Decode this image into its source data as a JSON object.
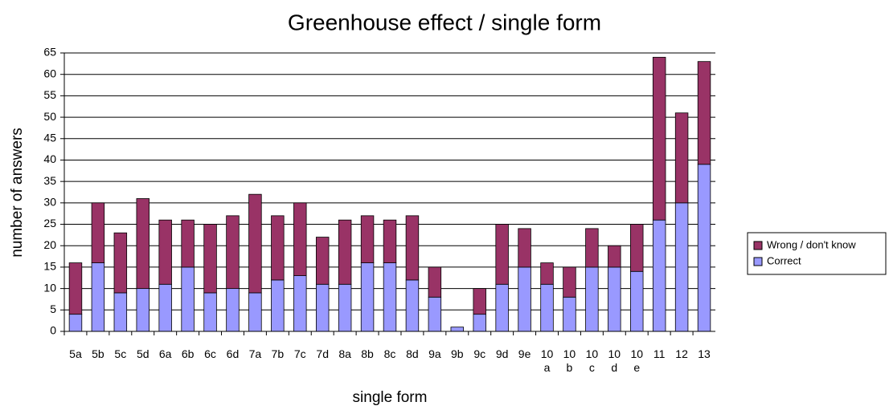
{
  "chart_data": {
    "type": "stacked_bar",
    "title": "Greenhouse effect / single form",
    "x_label": "single form",
    "y_label": "number of answers",
    "categories": [
      "5a",
      "5b",
      "5c",
      "5d",
      "6a",
      "6b",
      "6c",
      "6d",
      "7a",
      "7b",
      "7c",
      "7d",
      "8a",
      "8b",
      "8c",
      "8d",
      "9a",
      "9b",
      "9c",
      "9d",
      "9e",
      "10 a",
      "10 b",
      "10 c",
      "10 d",
      "10 e",
      "11",
      "12",
      "13"
    ],
    "series": [
      {
        "name": "Correct",
        "color": "#9999ff",
        "values": [
          4,
          16,
          9,
          10,
          11,
          15,
          9,
          10,
          9,
          12,
          13,
          11,
          11,
          16,
          16,
          12,
          8,
          1,
          4,
          11,
          15,
          11,
          8,
          15,
          15,
          14,
          26,
          30,
          39
        ]
      },
      {
        "name": "Wrong / don't know",
        "color": "#993366",
        "values": [
          12,
          14,
          14,
          21,
          15,
          11,
          16,
          17,
          23,
          15,
          17,
          11,
          15,
          11,
          10,
          15,
          7,
          0,
          6,
          14,
          9,
          5,
          7,
          9,
          5,
          11,
          38,
          21,
          24
        ]
      }
    ],
    "ylim": [
      0,
      65
    ],
    "yticks": [
      0,
      5,
      10,
      15,
      20,
      25,
      30,
      35,
      40,
      45,
      50,
      55,
      60,
      65
    ],
    "grid": true,
    "legend": "right"
  }
}
